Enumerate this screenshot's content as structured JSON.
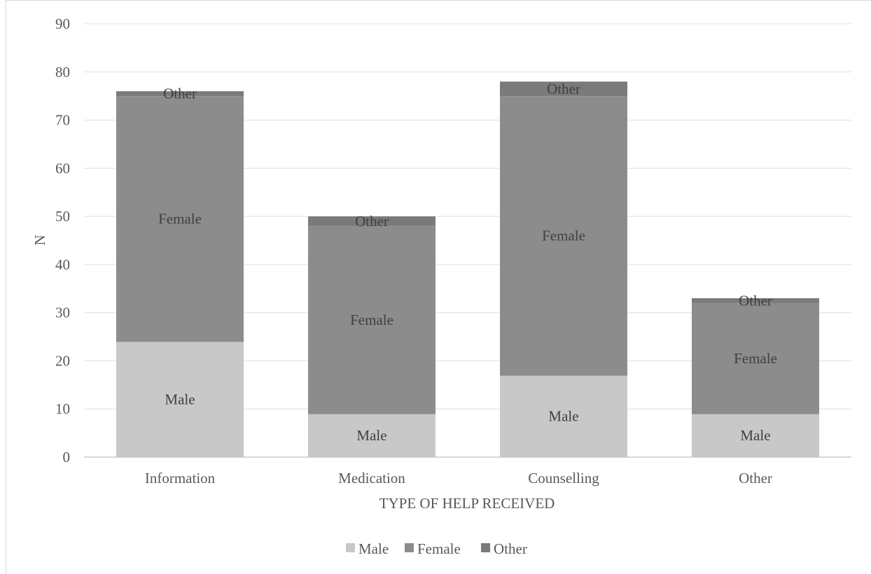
{
  "chart_data": {
    "type": "bar",
    "stacked": true,
    "categories": [
      "Information",
      "Medication",
      "Counselling",
      "Other"
    ],
    "series": [
      {
        "name": "Male",
        "values": [
          24,
          9,
          17,
          9
        ],
        "color": "#c8c8c8",
        "label_color": "#404040"
      },
      {
        "name": "Female",
        "values": [
          51,
          39,
          58,
          23
        ],
        "color": "#8c8c8c",
        "label_color": "#404040"
      },
      {
        "name": "Other",
        "values": [
          1,
          2,
          3,
          1
        ],
        "color": "#7a7a7a",
        "label_color": "#404040"
      }
    ],
    "xlabel": "TYPE OF HELP RECEIVED",
    "ylabel": "N",
    "ylim": [
      0,
      90
    ],
    "yticks": [
      0,
      10,
      20,
      30,
      40,
      50,
      60,
      70,
      80,
      90
    ],
    "grid": true,
    "legend_position": "bottom",
    "gridline_color": "#e6e6e6",
    "axis_color": "#bfbfbf",
    "text_color": "#595959"
  }
}
